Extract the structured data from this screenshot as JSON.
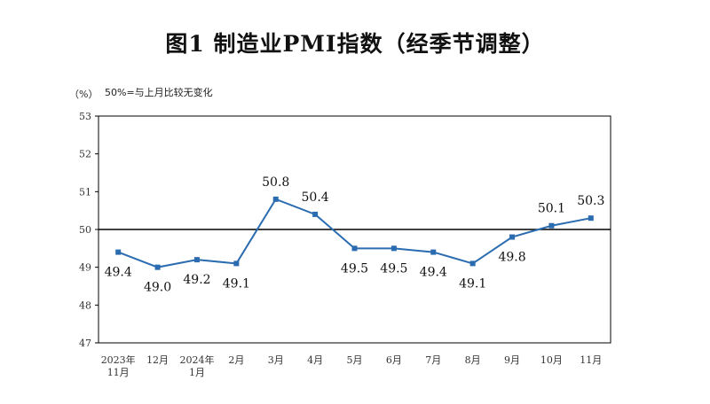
{
  "chart_data": {
    "type": "line",
    "title": "图1  制造业PMI指数（经季节调整）",
    "unit": "（%）",
    "note": "50%=与上月比较无变化",
    "ylim": [
      47,
      53
    ],
    "y_ticks": [
      "53",
      "52",
      "51",
      "50",
      "49",
      "48",
      "47"
    ],
    "reference_line": 50,
    "categories": [
      [
        "2023年",
        "11月"
      ],
      [
        "12月"
      ],
      [
        "2024年",
        "1月"
      ],
      [
        "2月"
      ],
      [
        "3月"
      ],
      [
        "4月"
      ],
      [
        "5月"
      ],
      [
        "6月"
      ],
      [
        "7月"
      ],
      [
        "8月"
      ],
      [
        "9月"
      ],
      [
        "10月"
      ],
      [
        "11月"
      ]
    ],
    "values": [
      49.4,
      49.0,
      49.2,
      49.1,
      50.8,
      50.4,
      49.5,
      49.5,
      49.4,
      49.1,
      49.8,
      50.1,
      50.3
    ],
    "value_labels": [
      "49.4",
      "49.0",
      "49.2",
      "49.1",
      "50.8",
      "50.4",
      "49.5",
      "49.5",
      "49.4",
      "49.1",
      "49.8",
      "50.1",
      "50.3"
    ],
    "label_position": [
      "below",
      "below",
      "below",
      "below",
      "above",
      "above",
      "below",
      "below",
      "below",
      "below",
      "below",
      "above",
      "above"
    ],
    "colors": {
      "line": "#2b6cb0",
      "marker": "#2b6cb0",
      "reference": "#000000"
    },
    "grid": false
  }
}
